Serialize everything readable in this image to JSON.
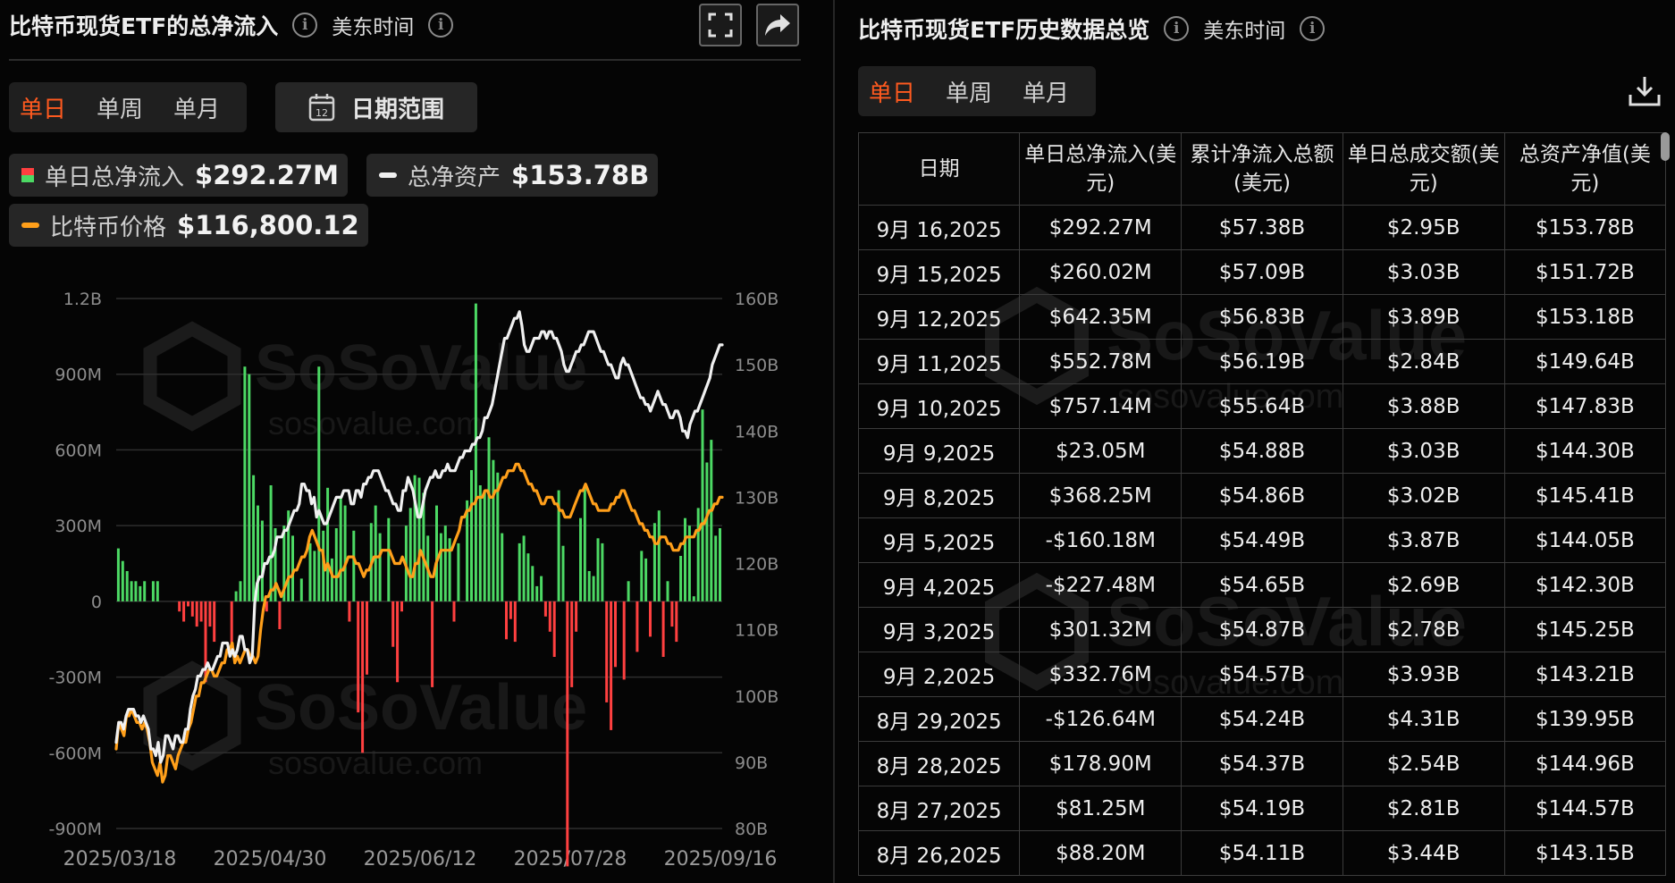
{
  "left": {
    "title": "比特币现货ETF的总净流入",
    "subtitle": "美东时间",
    "tabs": [
      {
        "label": "单日",
        "active": true
      },
      {
        "label": "单周"
      },
      {
        "label": "单月"
      }
    ],
    "date_range_label": "日期范围",
    "calendar_icon_text": "12",
    "legend": [
      {
        "label": "单日总净流入",
        "value": "$292.27M"
      },
      {
        "label": "总净资产",
        "value": "$153.78B"
      },
      {
        "label": "比特币价格",
        "value": "$116,800.12"
      }
    ],
    "icons": [
      "info-icon",
      "fullscreen-icon",
      "share-icon",
      "calendar-icon"
    ]
  },
  "right": {
    "title": "比特币现货ETF历史数据总览",
    "subtitle": "美东时间",
    "tabs": [
      {
        "label": "单日",
        "active": true
      },
      {
        "label": "单周"
      },
      {
        "label": "单月"
      }
    ],
    "columns": [
      "日期",
      "单日总净流入(美元)",
      "累计净流入总额(美元)",
      "单日总成交额(美元)",
      "总资产净值(美元)"
    ],
    "rows": [
      [
        "9月 16,2025",
        "$292.27M",
        "$57.38B",
        "$2.95B",
        "$153.78B"
      ],
      [
        "9月 15,2025",
        "$260.02M",
        "$57.09B",
        "$3.03B",
        "$151.72B"
      ],
      [
        "9月 12,2025",
        "$642.35M",
        "$56.83B",
        "$3.89B",
        "$153.18B"
      ],
      [
        "9月 11,2025",
        "$552.78M",
        "$56.19B",
        "$2.84B",
        "$149.64B"
      ],
      [
        "9月 10,2025",
        "$757.14M",
        "$55.64B",
        "$3.88B",
        "$147.83B"
      ],
      [
        "9月 9,2025",
        "$23.05M",
        "$54.88B",
        "$3.03B",
        "$144.30B"
      ],
      [
        "9月 8,2025",
        "$368.25M",
        "$54.86B",
        "$3.02B",
        "$145.41B"
      ],
      [
        "9月 5,2025",
        "-$160.18M",
        "$54.49B",
        "$3.87B",
        "$144.05B"
      ],
      [
        "9月 4,2025",
        "-$227.48M",
        "$54.65B",
        "$2.69B",
        "$142.30B"
      ],
      [
        "9月 3,2025",
        "$301.32M",
        "$54.87B",
        "$2.78B",
        "$145.25B"
      ],
      [
        "9月 2,2025",
        "$332.76M",
        "$54.57B",
        "$3.93B",
        "$143.21B"
      ],
      [
        "8月 29,2025",
        "-$126.64M",
        "$54.24B",
        "$4.31B",
        "$139.95B"
      ],
      [
        "8月 28,2025",
        "$178.90M",
        "$54.37B",
        "$2.54B",
        "$144.96B"
      ],
      [
        "8月 27,2025",
        "$81.25M",
        "$54.19B",
        "$2.81B",
        "$144.57B"
      ],
      [
        "8月 26,2025",
        "$88.20M",
        "$54.11B",
        "$3.44B",
        "$143.15B"
      ]
    ],
    "icons": [
      "info-icon",
      "export-icon"
    ]
  },
  "watermark": {
    "brand": "SoSoValue",
    "site": "sosovalue.com"
  },
  "colors": {
    "accent": "#ff5a1f",
    "inflow": "#4cd964",
    "outflow": "#ff4040",
    "asset_line": "#f0f0f0",
    "btc_line": "#ff9f1a"
  },
  "chart_data": {
    "type": "bar",
    "combo_series_types": [
      "bar",
      "line",
      "line"
    ],
    "x_start": "2025/03/18",
    "x_end": "2025/09/16",
    "x_ticks": [
      "2025/03/18",
      "2025/04/30",
      "2025/06/12",
      "2025/07/28",
      "2025/09/16"
    ],
    "y_left": {
      "ticks": [
        "1.2B",
        "900M",
        "600M",
        "300M",
        "0",
        "-300M",
        "-600M",
        "-900M"
      ],
      "range_millions": [
        -900,
        1200
      ]
    },
    "y_right": {
      "ticks": [
        "160B",
        "150B",
        "140B",
        "130B",
        "120B",
        "110B",
        "100B",
        "90B",
        "80B"
      ],
      "range_billions": [
        80,
        160
      ]
    },
    "grid": true,
    "series": [
      {
        "name": "单日总净流入",
        "axis": "left",
        "unit": "M USD",
        "values": [
          210,
          160,
          120,
          80,
          80,
          60,
          80,
          0,
          80,
          80,
          0,
          0,
          0,
          0,
          -40,
          -80,
          -20,
          -60,
          -100,
          -80,
          -320,
          -100,
          -160,
          0,
          0,
          0,
          -180,
          40,
          80,
          930,
          900,
          500,
          380,
          320,
          -40,
          460,
          290,
          -110,
          300,
          360,
          260,
          0,
          90,
          0,
          230,
          200,
          930,
          280,
          450,
          170,
          290,
          410,
          380,
          -80,
          280,
          -440,
          -600,
          -290,
          310,
          380,
          270,
          0,
          330,
          -180,
          -320,
          -40,
          300,
          370,
          500,
          490,
          430,
          260,
          -340,
          380,
          270,
          300,
          250,
          -80,
          230,
          0,
          400,
          520,
          1180,
          460,
          440,
          650,
          560,
          510,
          270,
          -150,
          -70,
          -160,
          230,
          260,
          190,
          140,
          60,
          100,
          -60,
          -120,
          -220,
          440,
          220,
          -1050,
          -340,
          -120,
          330,
          460,
          120,
          100,
          250,
          230,
          -400,
          -510,
          -260,
          0,
          -310,
          80,
          0,
          -200,
          200,
          170,
          -140,
          310,
          360,
          -220,
          80,
          -100,
          -160,
          180,
          330,
          300,
          20,
          370,
          760,
          550,
          640,
          260,
          290
        ]
      },
      {
        "name": "总净资产",
        "axis": "right",
        "unit": "B USD",
        "values": [
          93,
          96,
          96,
          95,
          97,
          98,
          98,
          98,
          97,
          97,
          96,
          97,
          96,
          95,
          92,
          92,
          91,
          93,
          90,
          91,
          94,
          94,
          93,
          92,
          94,
          94,
          93,
          93,
          95,
          95,
          98,
          100,
          101,
          103,
          103,
          104,
          104,
          105,
          104,
          104,
          105,
          106,
          106,
          108,
          108,
          108,
          106,
          107,
          106,
          107,
          109,
          109,
          107,
          107,
          105,
          106,
          114,
          117,
          118,
          118,
          120,
          120,
          121,
          121,
          122,
          124,
          124,
          124,
          125,
          125,
          126,
          127,
          128,
          128,
          129,
          132,
          132,
          131,
          131,
          129,
          130,
          127,
          128,
          127,
          126,
          126,
          127,
          128,
          129,
          130,
          130,
          130,
          131,
          131,
          131,
          129,
          129,
          131,
          131,
          130,
          132,
          132,
          133,
          133,
          134,
          134,
          134,
          133,
          132,
          131,
          131,
          130,
          129,
          129,
          128,
          128,
          131,
          131,
          133,
          132,
          131,
          129,
          127,
          127,
          129,
          131,
          132,
          133,
          133,
          134,
          133,
          133,
          134,
          134,
          135,
          134,
          134,
          134,
          135,
          136,
          136,
          137,
          137,
          137,
          138,
          138,
          139,
          139,
          140,
          142,
          142,
          143,
          144,
          146,
          148,
          150,
          152,
          154,
          154,
          155,
          156,
          157,
          157,
          158,
          156,
          153,
          152,
          152,
          153,
          154,
          154,
          154,
          155,
          155,
          154,
          155,
          155,
          154,
          154,
          153,
          152,
          150,
          149,
          149,
          150,
          151,
          152,
          152,
          153,
          153,
          154,
          155,
          155,
          155,
          154,
          153,
          152,
          152,
          151,
          150,
          150,
          149,
          148,
          148,
          150,
          151,
          150,
          150,
          149,
          148,
          147,
          146,
          145,
          145,
          144,
          144,
          143,
          144,
          145,
          146,
          145,
          144,
          144,
          143,
          142,
          142,
          143,
          143,
          142,
          140,
          140,
          139,
          141,
          142,
          143,
          143,
          144,
          145,
          146,
          147,
          148,
          150,
          151,
          152,
          153,
          153
        ]
      },
      {
        "name": "比特币价格",
        "axis": "right",
        "unit": "B (right-axis scale)",
        "values": [
          92,
          96,
          95,
          94,
          97,
          97,
          98,
          97,
          96,
          96,
          95,
          96,
          95,
          93,
          90,
          89,
          88,
          90,
          87,
          88,
          91,
          91,
          90,
          89,
          91,
          92,
          93,
          93,
          95,
          96,
          98,
          100,
          100,
          102,
          102,
          103,
          104,
          104,
          103,
          103,
          104,
          105,
          105,
          107,
          107,
          108,
          105,
          106,
          105,
          106,
          107,
          107,
          106,
          106,
          105,
          106,
          110,
          113,
          115,
          115,
          116,
          116,
          117,
          116,
          115,
          116,
          117,
          118,
          118,
          119,
          119,
          120,
          121,
          121,
          122,
          124,
          125,
          124,
          123,
          122,
          122,
          119,
          120,
          119,
          118,
          118,
          118,
          119,
          119,
          120,
          121,
          121,
          121,
          120,
          120,
          119,
          118,
          119,
          119,
          120,
          121,
          121,
          121,
          122,
          122,
          122,
          122,
          121,
          120,
          120,
          120,
          121,
          120,
          119,
          118,
          118,
          120,
          120,
          122,
          121,
          120,
          119,
          118,
          118,
          120,
          121,
          122,
          122,
          122,
          122,
          122,
          123,
          124,
          125,
          127,
          127,
          128,
          128,
          129,
          129,
          130,
          130,
          130,
          131,
          131,
          130,
          130,
          131,
          131,
          132,
          133,
          133,
          134,
          134,
          134,
          135,
          135,
          134,
          134,
          133,
          132,
          132,
          131,
          131,
          130,
          129,
          129,
          130,
          130,
          130,
          129,
          129,
          128,
          128,
          127,
          127,
          127,
          128,
          129,
          130,
          131,
          131,
          132,
          131,
          130,
          129,
          129,
          128,
          128,
          128,
          128,
          128,
          129,
          129,
          130,
          130,
          131,
          131,
          130,
          129,
          128,
          128,
          127,
          126,
          126,
          125,
          125,
          124,
          124,
          123,
          123,
          124,
          124,
          124,
          123,
          123,
          122,
          122,
          122,
          123,
          123,
          124,
          124,
          124,
          124,
          125,
          125,
          126,
          126,
          127,
          128,
          128,
          129,
          129,
          130,
          130
        ]
      }
    ]
  }
}
